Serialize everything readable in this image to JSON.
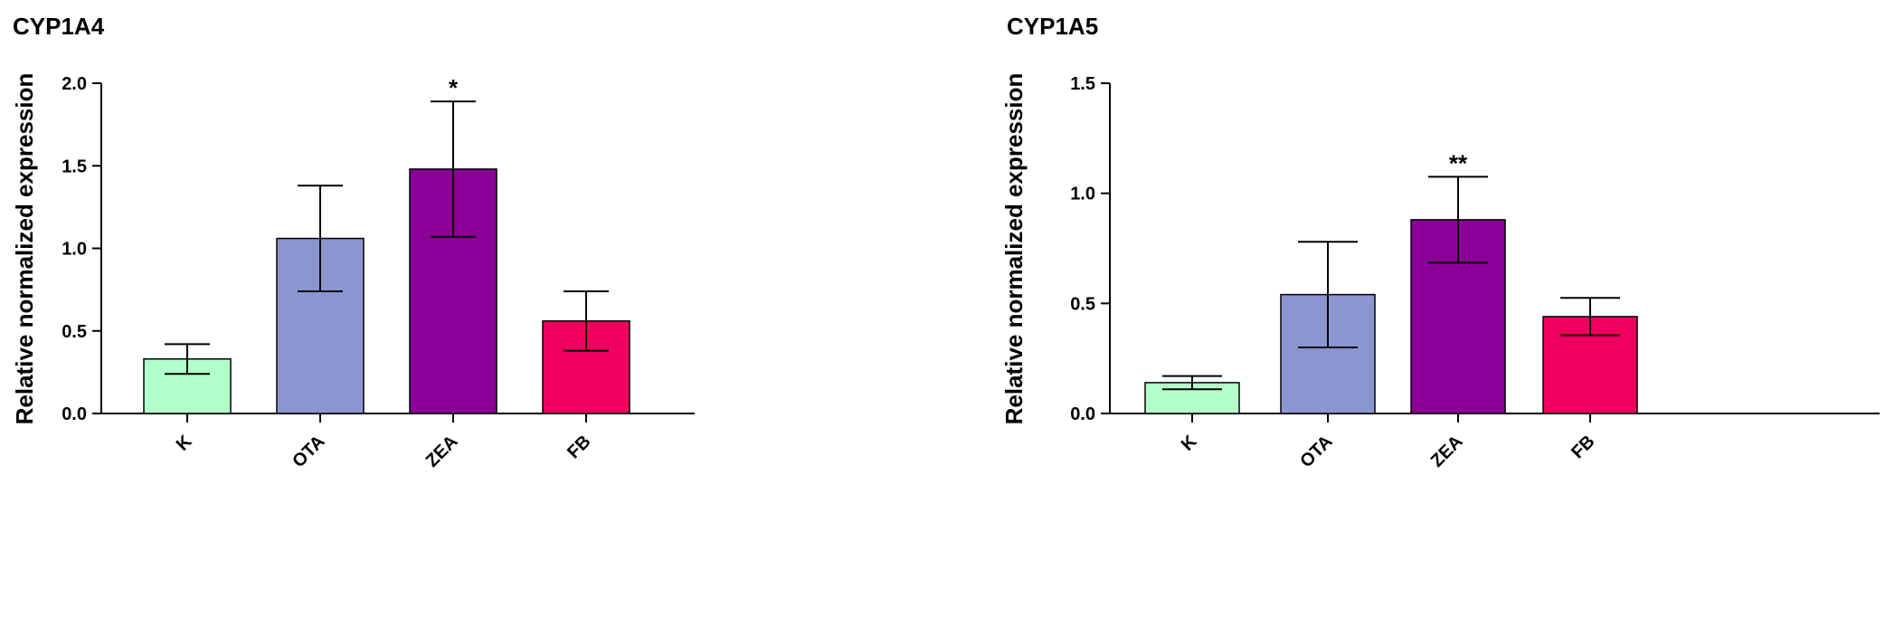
{
  "chart_data": [
    {
      "type": "bar",
      "title": "CYP1A4",
      "xlabel": "",
      "ylabel": "Relative normalized expression",
      "categories": [
        "K",
        "OTA",
        "ZEA",
        "FB"
      ],
      "values": [
        0.33,
        1.06,
        1.48,
        0.56
      ],
      "errors": [
        0.09,
        0.32,
        0.41,
        0.18
      ],
      "significance": [
        "",
        "",
        "*",
        ""
      ],
      "colors": [
        "#B3FFCC",
        "#8B96D1",
        "#8B0096",
        "#F0005E"
      ],
      "ylim": [
        0,
        2.0
      ],
      "yticks": [
        0.0,
        0.5,
        1.0,
        1.5,
        2.0
      ],
      "ytick_labels": [
        "0.0",
        "0.5",
        "1.0",
        "1.5",
        "2.0"
      ],
      "grid": false,
      "legend": "none"
    },
    {
      "type": "bar",
      "title": "CYP1A5",
      "xlabel": "",
      "ylabel": "Relative normalized expression",
      "categories": [
        "K",
        "OTA",
        "ZEA",
        "FB"
      ],
      "values": [
        0.14,
        0.54,
        0.88,
        0.44
      ],
      "errors": [
        0.03,
        0.24,
        0.195,
        0.085
      ],
      "significance": [
        "",
        "",
        "**",
        ""
      ],
      "colors": [
        "#B3FFCC",
        "#8B96D1",
        "#8B0096",
        "#F0005E"
      ],
      "ylim": [
        0,
        1.5
      ],
      "yticks": [
        0.0,
        0.5,
        1.0,
        1.5
      ],
      "ytick_labels": [
        "0.0",
        "0.5",
        "1.0",
        "1.5"
      ],
      "grid": false,
      "legend": "none"
    }
  ]
}
